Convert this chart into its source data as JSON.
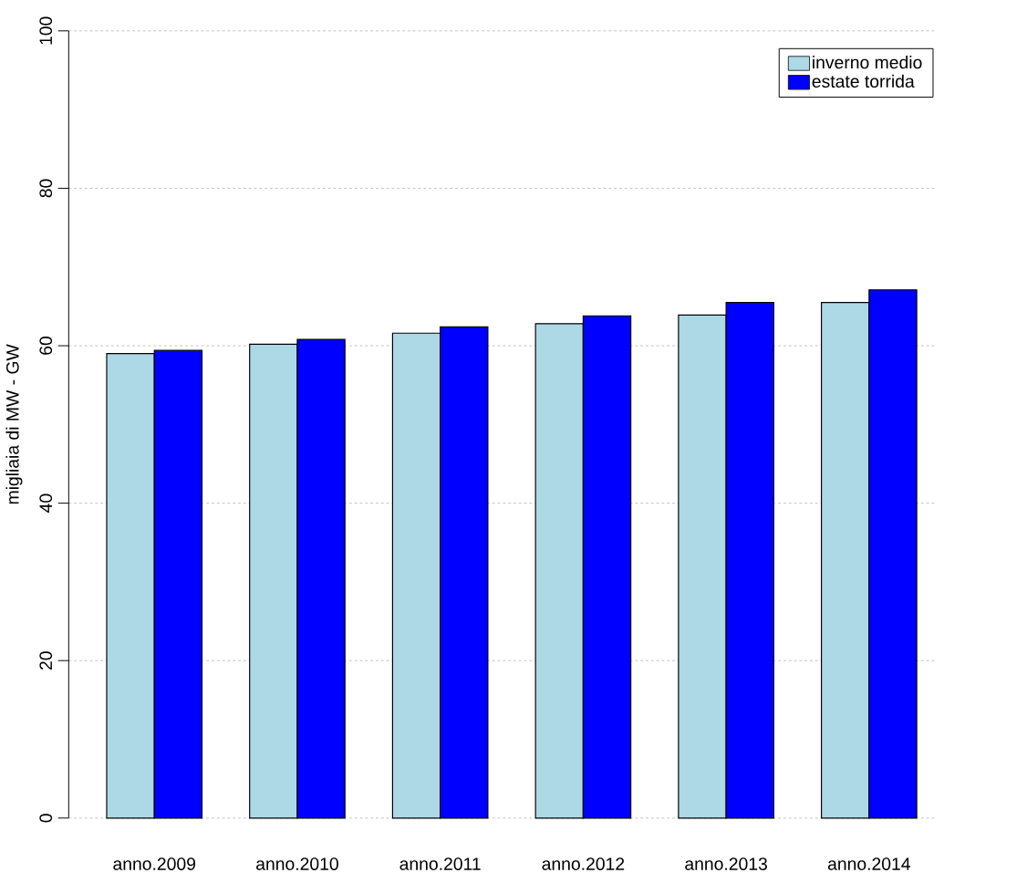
{
  "chart_data": {
    "type": "bar",
    "ylabel": "migliaia di MW - GW",
    "categories": [
      "anno.2009",
      "anno.2010",
      "anno.2011",
      "anno.2012",
      "anno.2013",
      "anno.2014"
    ],
    "series": [
      {
        "name": "inverno medio",
        "color": "#add8e6",
        "values": [
          59.0,
          60.2,
          61.6,
          62.8,
          63.9,
          65.5
        ]
      },
      {
        "name": "estate torrida",
        "color": "#0000ff",
        "values": [
          59.4,
          60.8,
          62.4,
          63.8,
          65.5,
          67.1
        ]
      }
    ],
    "ylim": [
      0,
      100
    ],
    "yticks": [
      0,
      20,
      40,
      60,
      80,
      100
    ],
    "grid": "y",
    "legend": "top right"
  }
}
